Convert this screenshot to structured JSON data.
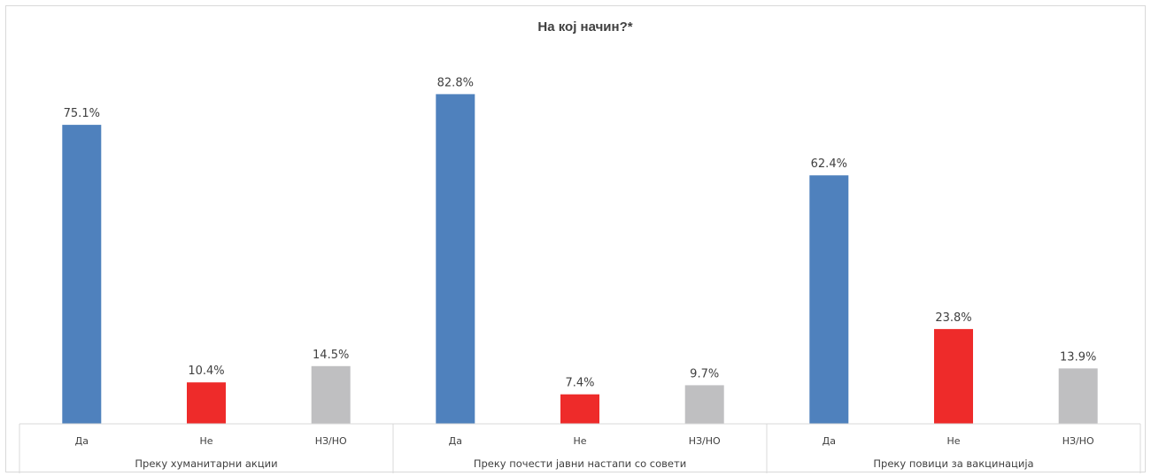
{
  "chart_data": {
    "type": "bar",
    "title": "На кој начин?*",
    "groups": [
      {
        "name": "Преку хуманитарни акции",
        "bars": [
          {
            "label": "Да",
            "value": 75.1,
            "display": "75.1%",
            "color": "#4f81bd"
          },
          {
            "label": "Не",
            "value": 10.4,
            "display": "10.4%",
            "color": "#ee2b2a"
          },
          {
            "label": "НЗ/НО",
            "value": 14.5,
            "display": "14.5%",
            "color": "#bfbfc1"
          }
        ]
      },
      {
        "name": "Преку почести јавни настапи со совети",
        "bars": [
          {
            "label": "Да",
            "value": 82.8,
            "display": "82.8%",
            "color": "#4f81bd"
          },
          {
            "label": "Не",
            "value": 7.4,
            "display": "7.4%",
            "color": "#ee2b2a"
          },
          {
            "label": "НЗ/НО",
            "value": 9.7,
            "display": "9.7%",
            "color": "#bfbfc1"
          }
        ]
      },
      {
        "name": "Преку повици за вакцинација",
        "bars": [
          {
            "label": "Да",
            "value": 62.4,
            "display": "62.4%",
            "color": "#4f81bd"
          },
          {
            "label": "Не",
            "value": 23.8,
            "display": "23.8%",
            "color": "#ee2b2a"
          },
          {
            "label": "НЗ/НО",
            "value": 13.9,
            "display": "13.9%",
            "color": "#bfbfc1"
          }
        ]
      }
    ],
    "ylim": [
      0,
      100
    ],
    "grid": false,
    "legend": "none"
  }
}
